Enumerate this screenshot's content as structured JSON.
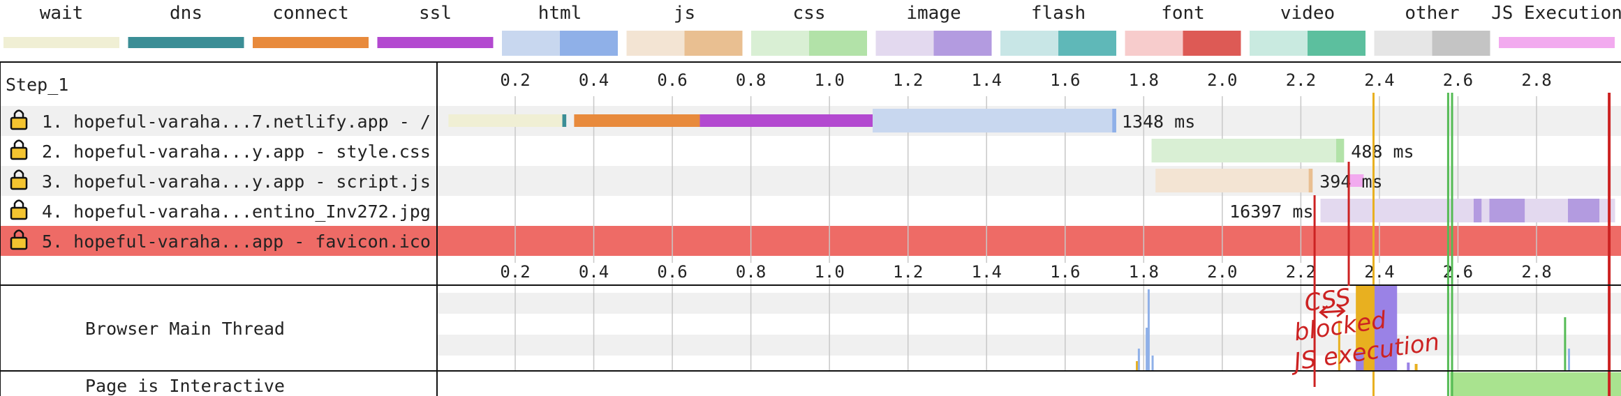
{
  "chart_data": {
    "type": "waterfall",
    "legend": [
      {
        "label": "wait",
        "light": "#f0efd4",
        "dark": "#f0efd4"
      },
      {
        "label": "dns",
        "light": "#3b8e96",
        "dark": "#3b8e96"
      },
      {
        "label": "connect",
        "light": "#e88a3c",
        "dark": "#e88a3c"
      },
      {
        "label": "ssl",
        "light": "#b349d0",
        "dark": "#b349d0"
      },
      {
        "label": "html",
        "light": "#c8d7ef",
        "dark": "#8fb0e8"
      },
      {
        "label": "js",
        "light": "#f3e4d3",
        "dark": "#e9bf91"
      },
      {
        "label": "css",
        "light": "#d9efd4",
        "dark": "#b2e2a8"
      },
      {
        "label": "image",
        "light": "#e3d9ef",
        "dark": "#b39be0"
      },
      {
        "label": "flash",
        "light": "#c8e6e6",
        "dark": "#5fb8b8"
      },
      {
        "label": "font",
        "light": "#f7cccc",
        "dark": "#dd5a55"
      },
      {
        "label": "video",
        "light": "#c9eae0",
        "dark": "#5cbf9e"
      },
      {
        "label": "other",
        "light": "#e6e6e6",
        "dark": "#c4c4c4"
      },
      {
        "label": "JS Execution",
        "light": "#f2aaef",
        "dark": "#f2aaef"
      }
    ],
    "step_label": "Step_1",
    "x_ticks": [
      "0.2",
      "0.4",
      "0.6",
      "0.8",
      "1.0",
      "1.2",
      "1.4",
      "1.6",
      "1.8",
      "2.0",
      "2.2",
      "2.4",
      "2.6",
      "2.8"
    ],
    "x_tick_values": [
      0.2,
      0.4,
      0.6,
      0.8,
      1.0,
      1.2,
      1.4,
      1.6,
      1.8,
      2.0,
      2.2,
      2.4,
      2.6,
      2.8
    ],
    "x_range": [
      0.0,
      3.0
    ],
    "requests": [
      {
        "label": "1. hopeful-varaha...7.netlify.app - /",
        "duration": "1348 ms",
        "highlight": false,
        "phases": [
          {
            "type": "wait",
            "start": 0.03,
            "end": 0.32
          },
          {
            "type": "dns",
            "start": 0.32,
            "end": 0.33
          },
          {
            "type": "connect",
            "start": 0.35,
            "end": 0.67
          },
          {
            "type": "ssl",
            "start": 0.67,
            "end": 1.11
          },
          {
            "type": "html",
            "start": 1.11,
            "end": 1.73,
            "dark_from": 1.72
          }
        ]
      },
      {
        "label": "2. hopeful-varaha...y.app - style.css",
        "duration": "488 ms",
        "highlight": false,
        "phases": [
          {
            "type": "css",
            "start": 1.82,
            "end": 2.31,
            "dark_from": 2.29
          }
        ]
      },
      {
        "label": "3. hopeful-varaha...y.app - script.js",
        "duration": "394 ms",
        "highlight": false,
        "phases": [
          {
            "type": "js",
            "start": 1.83,
            "end": 2.23,
            "dark_from": 2.22
          },
          {
            "type": "JS Execution",
            "start": 2.32,
            "end": 2.36
          }
        ]
      },
      {
        "label": "4. hopeful-varaha...entino_Inv272.jpg",
        "duration": "16397 ms",
        "highlight": false,
        "phases": [
          {
            "type": "image",
            "start": 2.25,
            "end": 3.0,
            "dark_segments": [
              [
                2.64,
                2.66
              ],
              [
                2.68,
                2.77
              ],
              [
                2.88,
                2.96
              ]
            ]
          }
        ]
      },
      {
        "label": "5. hopeful-varaha...app - favicon.ico",
        "duration": "",
        "highlight": true,
        "phases": []
      }
    ],
    "main_thread_label": "Browser Main Thread",
    "interactive_label": "Page is Interactive",
    "interactive_start": 2.58,
    "markers": [
      {
        "name": "orange-marker",
        "x": 2.385,
        "color": "#e8b020"
      },
      {
        "name": "green-marker-1",
        "x": 2.575,
        "color": "#55bb55"
      },
      {
        "name": "green-marker-2",
        "x": 2.585,
        "color": "#55bb55"
      },
      {
        "name": "red-marker",
        "x": 2.985,
        "color": "#cc2222"
      }
    ],
    "annotation": {
      "lines": [
        "CSS",
        "blocked",
        "JS execution"
      ],
      "color": "#cc2222"
    }
  }
}
